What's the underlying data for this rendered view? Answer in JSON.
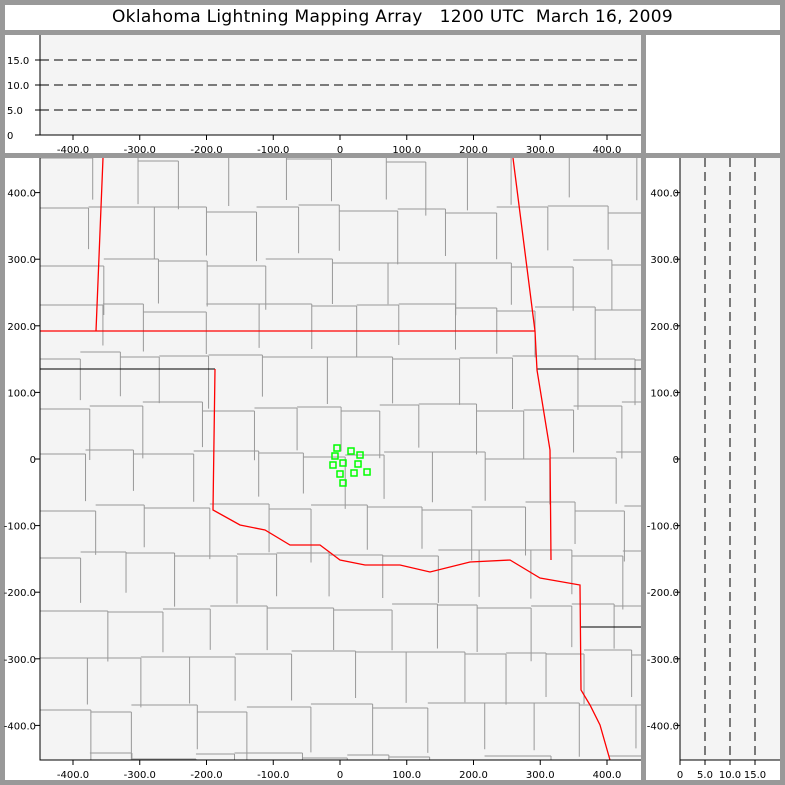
{
  "title": "Oklahoma Lightning Mapping Array   1200 UTC  March 16, 2009",
  "colors": {
    "border": "#999999",
    "plot_bg": "#f4f4f4",
    "county": "#999999",
    "state_line": "#ff0000",
    "source": "#00ff00"
  },
  "chart_data": [
    {
      "type": "scatter",
      "name_panel": "plan-view",
      "x_ticks": [
        "-400.0",
        "-300.0",
        "-200.0",
        "-100.0",
        "0",
        "100.0",
        "200.0",
        "300.0",
        "400.0"
      ],
      "y_ticks": [
        "400.0",
        "300.0",
        "200.0",
        "100.0",
        "0",
        "-100.0",
        "-200.0",
        "-300.0",
        "-400.0"
      ],
      "xlim": [
        -450,
        450
      ],
      "ylim": [
        -452,
        452
      ],
      "background": "Oklahoma county map",
      "points": [
        {
          "x": -4.5,
          "y": 16.5
        },
        {
          "x": 16.5,
          "y": 12
        },
        {
          "x": 30,
          "y": 6
        },
        {
          "x": -7.5,
          "y": 4.5
        },
        {
          "x": 4.5,
          "y": -6
        },
        {
          "x": 27,
          "y": -7.5
        },
        {
          "x": -10.5,
          "y": -9
        },
        {
          "x": 0,
          "y": -22.5
        },
        {
          "x": 21,
          "y": -21
        },
        {
          "x": 40.5,
          "y": -19.5
        },
        {
          "x": 4.5,
          "y": -36
        }
      ]
    },
    {
      "type": "scatter",
      "name_panel": "east-west-altitude",
      "x_ticks": [
        "-400.0",
        "-300.0",
        "-200.0",
        "-100.0",
        "0",
        "100.0",
        "200.0",
        "300.0",
        "400.0"
      ],
      "y_ticks": [
        "15.0",
        "10.0",
        "5.0",
        "0"
      ],
      "xlim": [
        -450,
        450
      ],
      "ylim": [
        0,
        20
      ],
      "points": []
    },
    {
      "type": "scatter",
      "name_panel": "north-south-altitude",
      "x_ticks": [
        "0",
        "5.0",
        "10.0",
        "15.0"
      ],
      "y_ticks": [
        "400.0",
        "300.0",
        "200.0",
        "100.0",
        "0",
        "-100.0",
        "-200.0",
        "-300.0",
        "-400.0"
      ],
      "xlim": [
        0,
        20
      ],
      "ylim": [
        -452,
        452
      ],
      "points": []
    }
  ]
}
